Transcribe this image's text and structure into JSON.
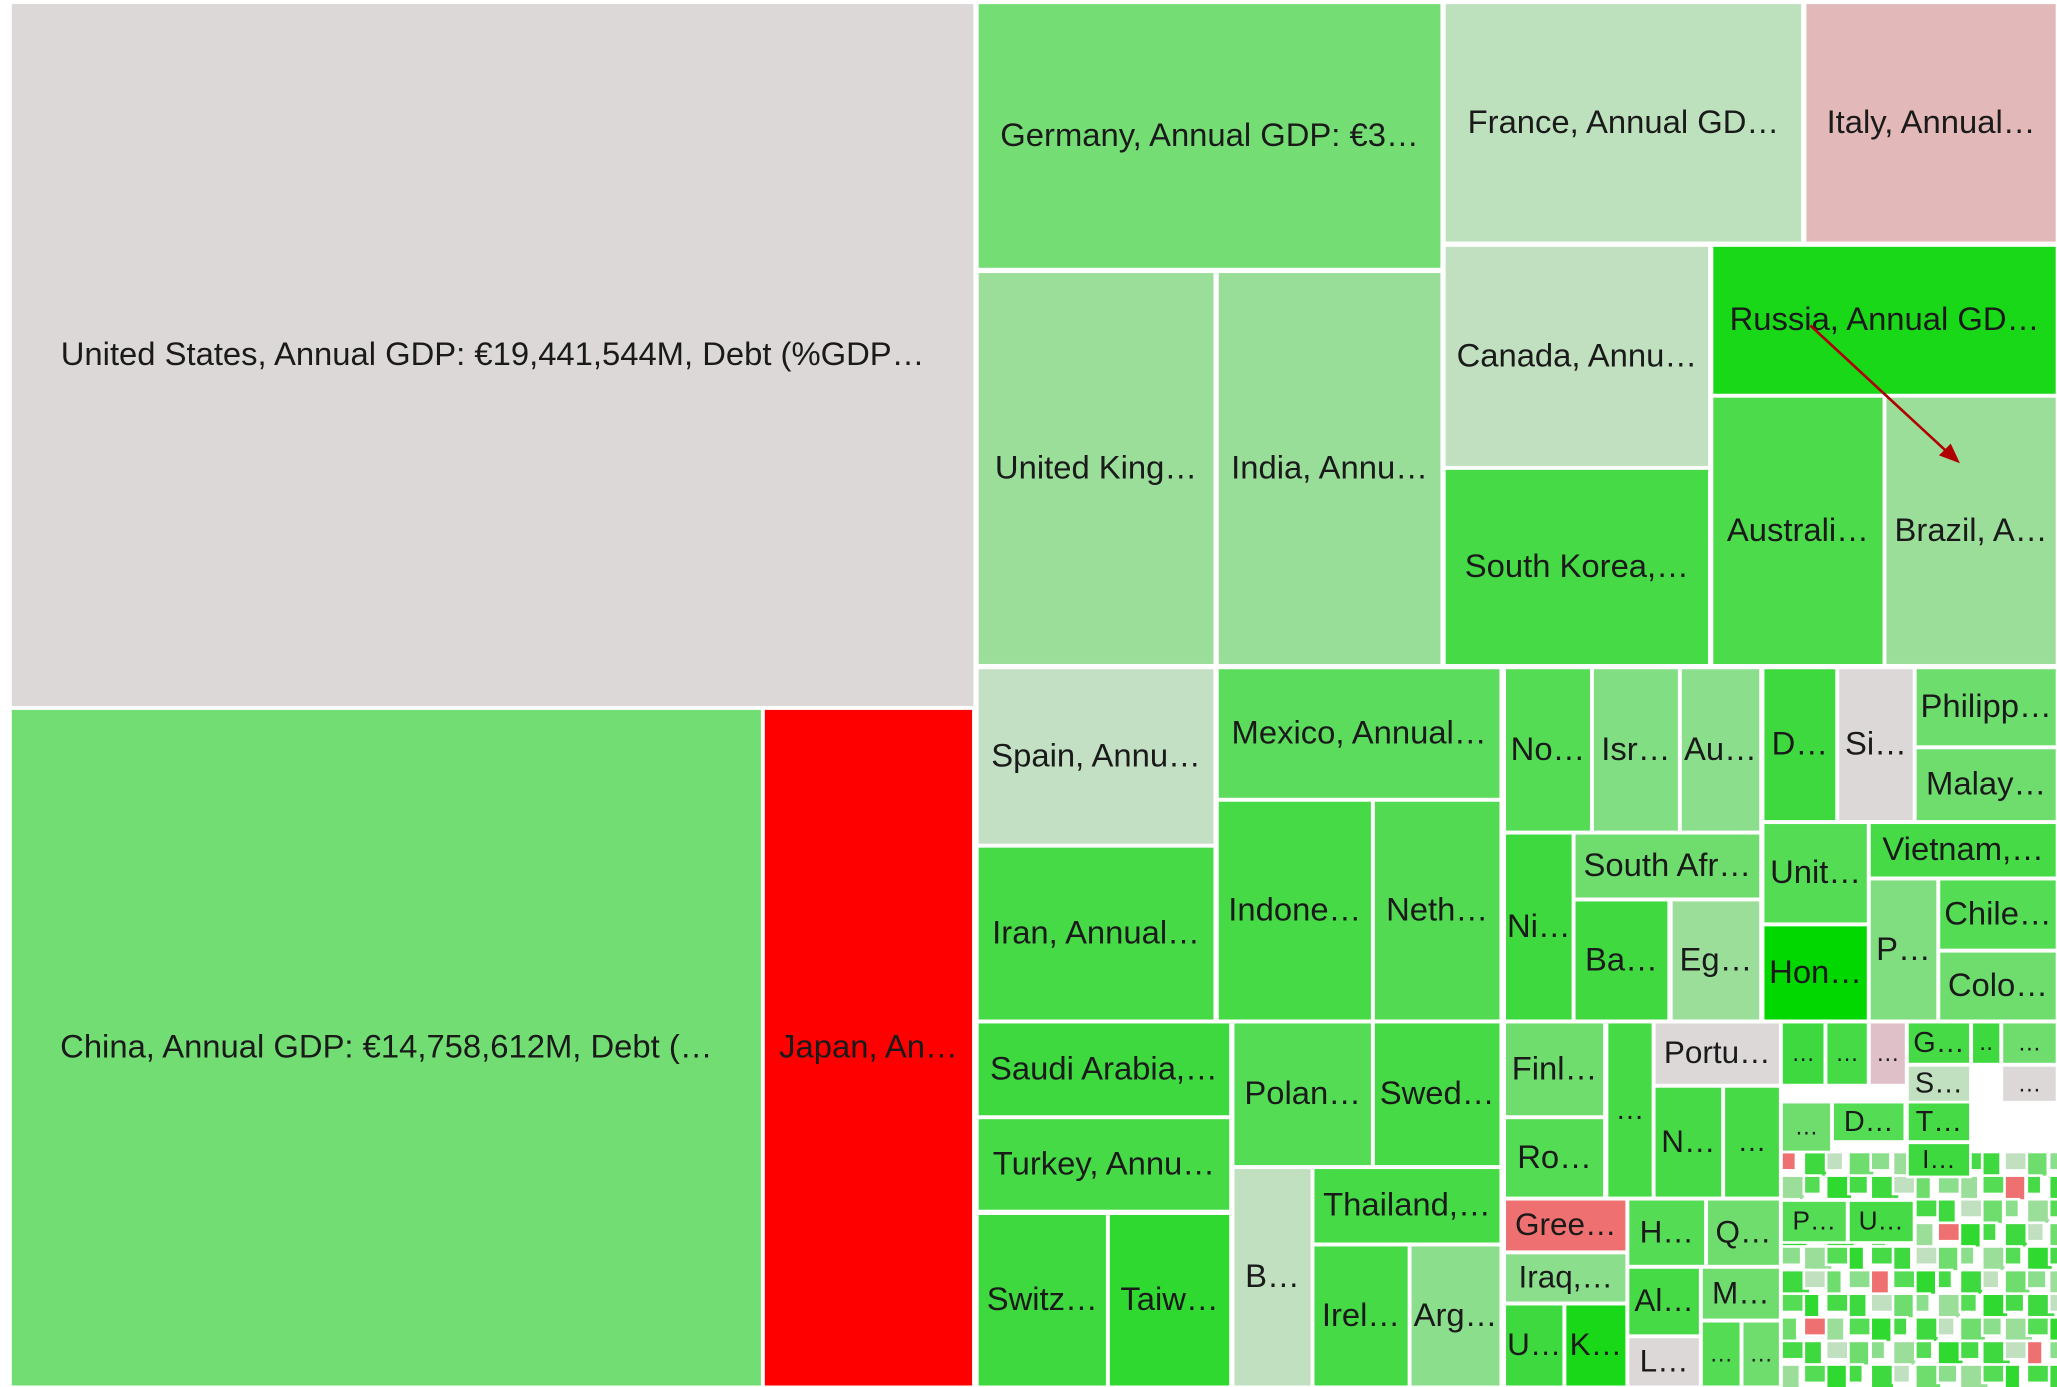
{
  "tiles": [
    {
      "label": "United States, Annual GDP: €19,441,544M, Debt (%GDP…"
    },
    {
      "label": "China, Annual GDP: €14,758,612M, Debt (…"
    },
    {
      "label": "Japan, An…"
    },
    {
      "label": "Germany, Annual GDP: €3…"
    },
    {
      "label": "France, Annual GD…"
    },
    {
      "label": "Italy, Annual…"
    },
    {
      "label": "United King…"
    },
    {
      "label": "India, Annu…"
    },
    {
      "label": "Canada, Annu…"
    },
    {
      "label": "South Korea,…"
    },
    {
      "label": "Russia, Annual GD…"
    },
    {
      "label": "Australi…"
    },
    {
      "label": "Brazil, A…"
    },
    {
      "label": "Spain, Annu…"
    },
    {
      "label": "Mexico, Annual…"
    },
    {
      "label": "Iran, Annual…"
    },
    {
      "label": "Indone…"
    },
    {
      "label": "Neth…"
    },
    {
      "label": "No…"
    },
    {
      "label": "Isr…"
    },
    {
      "label": "Au…"
    },
    {
      "label": "D…"
    },
    {
      "label": "Si…"
    },
    {
      "label": "Philipp…"
    },
    {
      "label": "Malay…"
    },
    {
      "label": "Ni…"
    },
    {
      "label": "South Afr…"
    },
    {
      "label": "Ba…"
    },
    {
      "label": "Eg…"
    },
    {
      "label": "Unit…"
    },
    {
      "label": "Hon…"
    },
    {
      "label": "Vietnam,…"
    },
    {
      "label": "P…"
    },
    {
      "label": "Chile…"
    },
    {
      "label": "Colo…"
    },
    {
      "label": "Saudi Arabia,…"
    },
    {
      "label": "Turkey, Annu…"
    },
    {
      "label": "Switz…"
    },
    {
      "label": "Taiw…"
    },
    {
      "label": "Polan…"
    },
    {
      "label": "Swed…"
    },
    {
      "label": "B…"
    },
    {
      "label": "Thailand,…"
    },
    {
      "label": "Irel…"
    },
    {
      "label": "Arg…"
    },
    {
      "label": "Finl…"
    },
    {
      "label": "Ro…"
    },
    {
      "label": "…"
    },
    {
      "label": "Portu…"
    },
    {
      "label": "N…"
    },
    {
      "label": "…"
    },
    {
      "label": "Gree…"
    },
    {
      "label": "Iraq,…"
    },
    {
      "label": "U…"
    },
    {
      "label": "K…"
    },
    {
      "label": "H…"
    },
    {
      "label": "Q…"
    },
    {
      "label": "Al…"
    },
    {
      "label": "M…"
    },
    {
      "label": "L…"
    },
    {
      "label": "…"
    },
    {
      "label": "…"
    },
    {
      "label": "…"
    },
    {
      "label": "…"
    },
    {
      "label": "…"
    },
    {
      "label": "G…"
    },
    {
      "label": "‥"
    },
    {
      "label": "…"
    },
    {
      "label": "S…"
    },
    {
      "label": "…"
    },
    {
      "label": "D…"
    },
    {
      "label": "T…"
    },
    {
      "label": "…"
    },
    {
      "label": "I…"
    },
    {
      "label": "P…"
    },
    {
      "label": "U…"
    }
  ]
}
